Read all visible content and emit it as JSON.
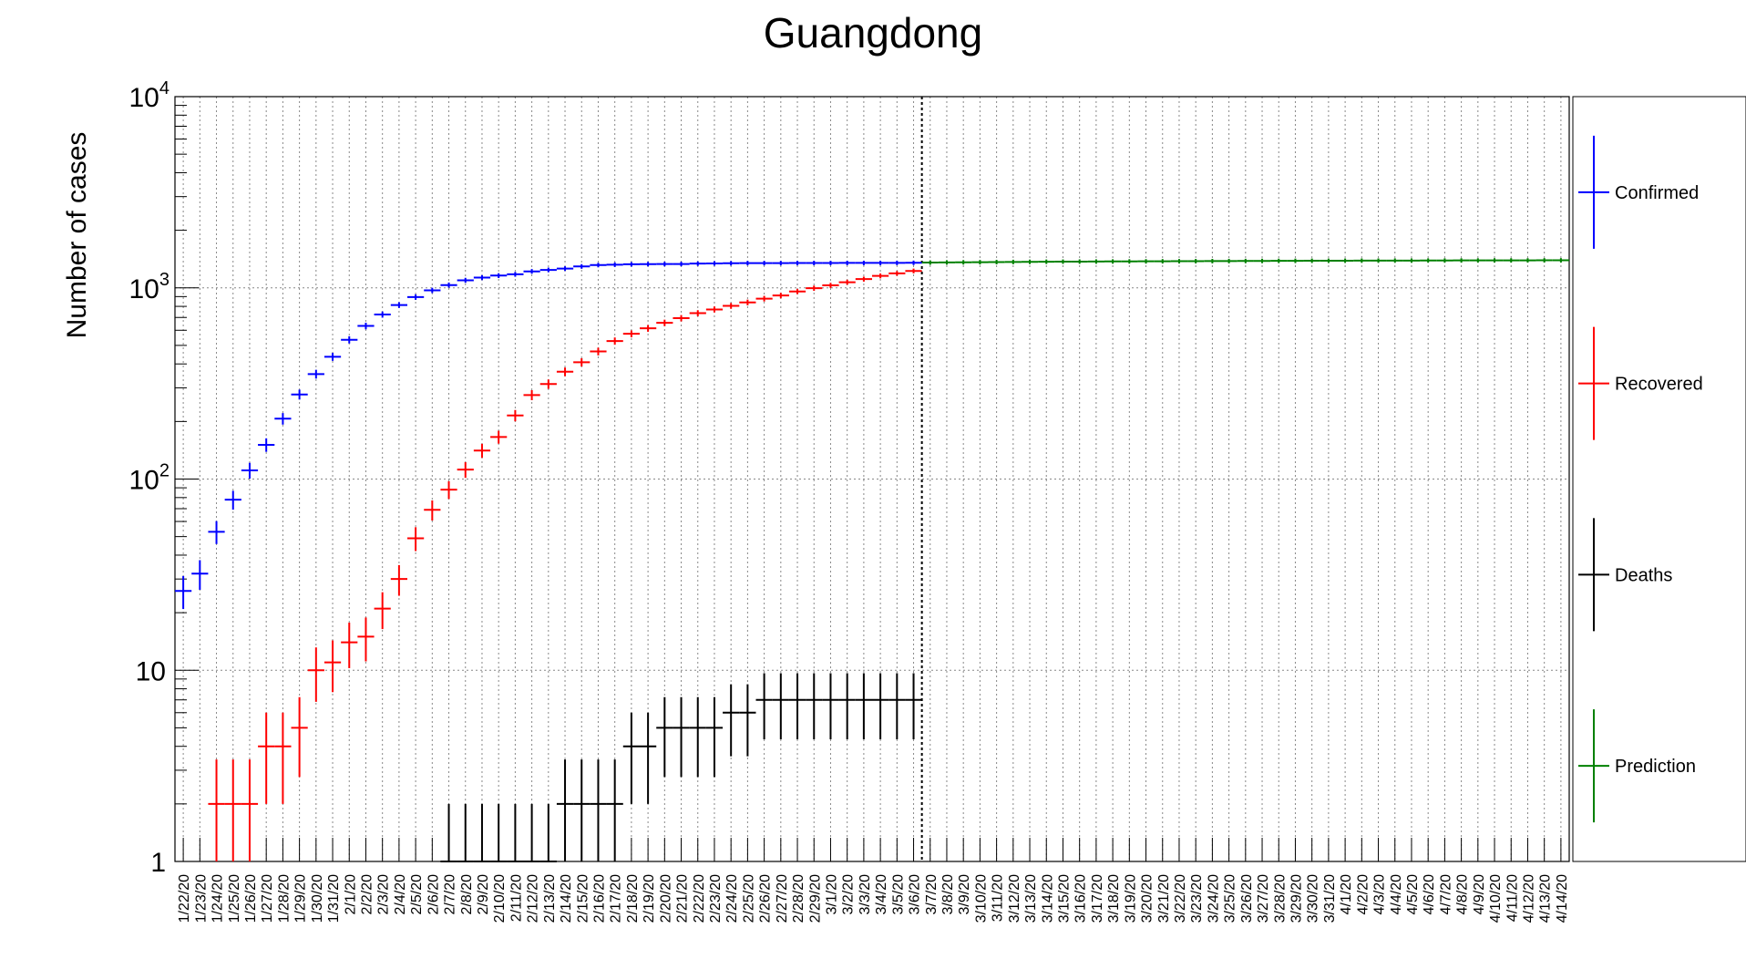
{
  "chart_data": {
    "type": "scatter",
    "title": "Guangdong",
    "ylabel": "Number of cases",
    "yscale": "log",
    "ylim": [
      1,
      10000
    ],
    "yticks": [
      {
        "value": 1,
        "base": "1",
        "exp": ""
      },
      {
        "value": 10,
        "base": "10",
        "exp": ""
      },
      {
        "value": 100,
        "base": "10",
        "exp": "2"
      },
      {
        "value": 1000,
        "base": "10",
        "exp": "3"
      },
      {
        "value": 10000,
        "base": "10",
        "exp": "4"
      }
    ],
    "grid": true,
    "legend_position": "right",
    "last_observed": "3/6/20",
    "categories": [
      "1/22/20",
      "1/23/20",
      "1/24/20",
      "1/25/20",
      "1/26/20",
      "1/27/20",
      "1/28/20",
      "1/29/20",
      "1/30/20",
      "1/31/20",
      "2/1/20",
      "2/2/20",
      "2/3/20",
      "2/4/20",
      "2/5/20",
      "2/6/20",
      "2/7/20",
      "2/8/20",
      "2/9/20",
      "2/10/20",
      "2/11/20",
      "2/12/20",
      "2/13/20",
      "2/14/20",
      "2/15/20",
      "2/16/20",
      "2/17/20",
      "2/18/20",
      "2/19/20",
      "2/20/20",
      "2/21/20",
      "2/22/20",
      "2/23/20",
      "2/24/20",
      "2/25/20",
      "2/26/20",
      "2/27/20",
      "2/28/20",
      "2/29/20",
      "3/1/20",
      "3/2/20",
      "3/3/20",
      "3/4/20",
      "3/5/20",
      "3/6/20",
      "3/7/20",
      "3/8/20",
      "3/9/20",
      "3/10/20",
      "3/11/20",
      "3/12/20",
      "3/13/20",
      "3/14/20",
      "3/15/20",
      "3/16/20",
      "3/17/20",
      "3/18/20",
      "3/19/20",
      "3/20/20",
      "3/21/20",
      "3/22/20",
      "3/23/20",
      "3/24/20",
      "3/25/20",
      "3/26/20",
      "3/27/20",
      "3/28/20",
      "3/29/20",
      "3/30/20",
      "3/31/20",
      "4/1/20",
      "4/2/20",
      "4/3/20",
      "4/4/20",
      "4/5/20",
      "4/6/20",
      "4/7/20",
      "4/8/20",
      "4/9/20",
      "4/10/20",
      "4/11/20",
      "4/12/20",
      "4/13/20",
      "4/14/20"
    ],
    "series": [
      {
        "name": "Confirmed",
        "color": "#0000ff",
        "values": [
          26,
          32,
          53,
          78,
          111,
          151,
          207,
          277,
          354,
          436,
          535,
          632,
          725,
          813,
          895,
          970,
          1034,
          1095,
          1131,
          1159,
          1177,
          1219,
          1241,
          1261,
          1294,
          1316,
          1322,
          1328,
          1331,
          1332,
          1333,
          1339,
          1342,
          1345,
          1347,
          1347,
          1347,
          1348,
          1349,
          1349,
          1350,
          1350,
          1350,
          1351,
          1352
        ]
      },
      {
        "name": "Recovered",
        "color": "#ff0000",
        "values": [
          0,
          0,
          2,
          2,
          2,
          4,
          4,
          5,
          10,
          11,
          14,
          15,
          21,
          30,
          49,
          69,
          88,
          112,
          141,
          166,
          215,
          275,
          314,
          364,
          408,
          465,
          527,
          575,
          614,
          656,
          694,
          737,
          771,
          805,
          839,
          878,
          912,
          957,
          996,
          1030,
          1070,
          1111,
          1155,
          1190,
          1226
        ]
      },
      {
        "name": "Deaths",
        "color": "#000000",
        "values": [
          0,
          0,
          0,
          0,
          0,
          0,
          0,
          0,
          0,
          0,
          0,
          0,
          0,
          0,
          0,
          0,
          1,
          1,
          1,
          1,
          1,
          1,
          1,
          2,
          2,
          2,
          2,
          4,
          4,
          5,
          5,
          5,
          5,
          6,
          6,
          7,
          7,
          7,
          7,
          7,
          7,
          7,
          7,
          7,
          7
        ]
      },
      {
        "name": "Prediction",
        "color": "#008000",
        "start_index": 45,
        "values": [
          1356,
          1358,
          1360,
          1362,
          1364,
          1366,
          1368,
          1370,
          1371,
          1372,
          1373,
          1374,
          1375,
          1376,
          1377,
          1378,
          1379,
          1380,
          1381,
          1382,
          1383,
          1384,
          1385,
          1386,
          1386,
          1387,
          1388,
          1388,
          1389,
          1389,
          1390,
          1390,
          1391,
          1391,
          1392,
          1392,
          1392,
          1393,
          1393
        ]
      }
    ]
  }
}
